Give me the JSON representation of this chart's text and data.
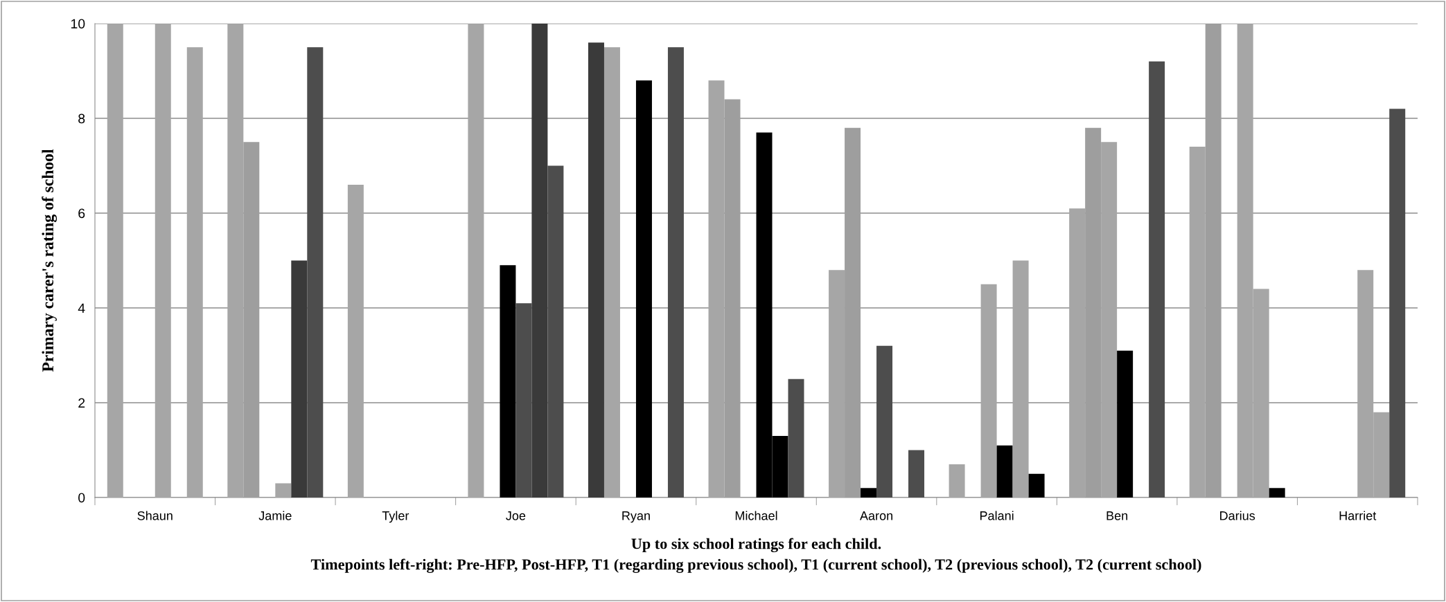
{
  "chart_data": {
    "type": "bar",
    "xlabel": "Up to six school ratings for each child.\nTimepoints left-right: Pre-HFP, Post-HFP, T1 (regarding previous school), T1 (current school), T2 (previous school), T2 (current school)",
    "ylabel": "Primary carer's rating of school",
    "categories": [
      "Shaun",
      "Jamie",
      "Tyler",
      "Joe",
      "Ryan",
      "Michael",
      "Aaron",
      "Palani",
      "Ben",
      "Darius",
      "Harriet"
    ],
    "series": [
      {
        "values": [
          10,
          10,
          6.6,
          10,
          9.6,
          8.8,
          4.8,
          0.7,
          6.1,
          7.4,
          null
        ],
        "colors": [
          "#a6a6a6",
          "#a6a6a6",
          "#a6a6a6",
          "#a6a6a6",
          "#3a3a3a",
          "#a6a6a6",
          "#a6a6a6",
          "#a6a6a6",
          "#a6a6a6",
          "#a6a6a6",
          "#a6a6a6"
        ]
      },
      {
        "values": [
          null,
          7.5,
          null,
          null,
          9.5,
          8.4,
          7.8,
          null,
          7.8,
          10,
          null
        ],
        "colors": [
          "#9e9e9e",
          "#9e9e9e",
          "#9e9e9e",
          "#9e9e9e",
          "#a6a6a6",
          "#9e9e9e",
          "#9e9e9e",
          "#9e9e9e",
          "#9e9e9e",
          "#9e9e9e",
          "#9e9e9e"
        ]
      },
      {
        "values": [
          null,
          null,
          null,
          4.9,
          null,
          null,
          0.2,
          4.5,
          7.5,
          null,
          null
        ],
        "colors": [
          "#a6a6a6",
          "#a6a6a6",
          "#a6a6a6",
          "#000000",
          "#a6a6a6",
          "#a6a6a6",
          "#000000",
          "#a6a6a6",
          "#a6a6a6",
          "#a6a6a6",
          "#a6a6a6"
        ]
      },
      {
        "values": [
          10,
          0.3,
          null,
          4.1,
          8.8,
          7.7,
          3.2,
          1.1,
          3.1,
          10,
          4.8
        ],
        "colors": [
          "#a6a6a6",
          "#a6a6a6",
          "#a6a6a6",
          "#4d4d4d",
          "#000000",
          "#000000",
          "#4d4d4d",
          "#000000",
          "#000000",
          "#a6a6a6",
          "#a6a6a6"
        ]
      },
      {
        "values": [
          null,
          5.0,
          null,
          10,
          null,
          1.3,
          null,
          5.0,
          null,
          4.4,
          1.8
        ],
        "colors": [
          "#a6a6a6",
          "#3a3a3a",
          "#a6a6a6",
          "#3a3a3a",
          "#a6a6a6",
          "#000000",
          "#a6a6a6",
          "#a6a6a6",
          "#a6a6a6",
          "#a6a6a6",
          "#a6a6a6"
        ]
      },
      {
        "values": [
          9.5,
          9.5,
          null,
          7.0,
          9.5,
          2.5,
          1.0,
          0.5,
          9.2,
          0.2,
          8.2
        ],
        "colors": [
          "#a6a6a6",
          "#4d4d4d",
          "#a6a6a6",
          "#4d4d4d",
          "#4d4d4d",
          "#4d4d4d",
          "#4d4d4d",
          "#000000",
          "#4d4d4d",
          "#000000",
          "#4d4d4d"
        ]
      }
    ],
    "ylim": [
      0,
      10
    ],
    "yticks": [
      0,
      2,
      4,
      6,
      8,
      10
    ],
    "grid": "y"
  }
}
